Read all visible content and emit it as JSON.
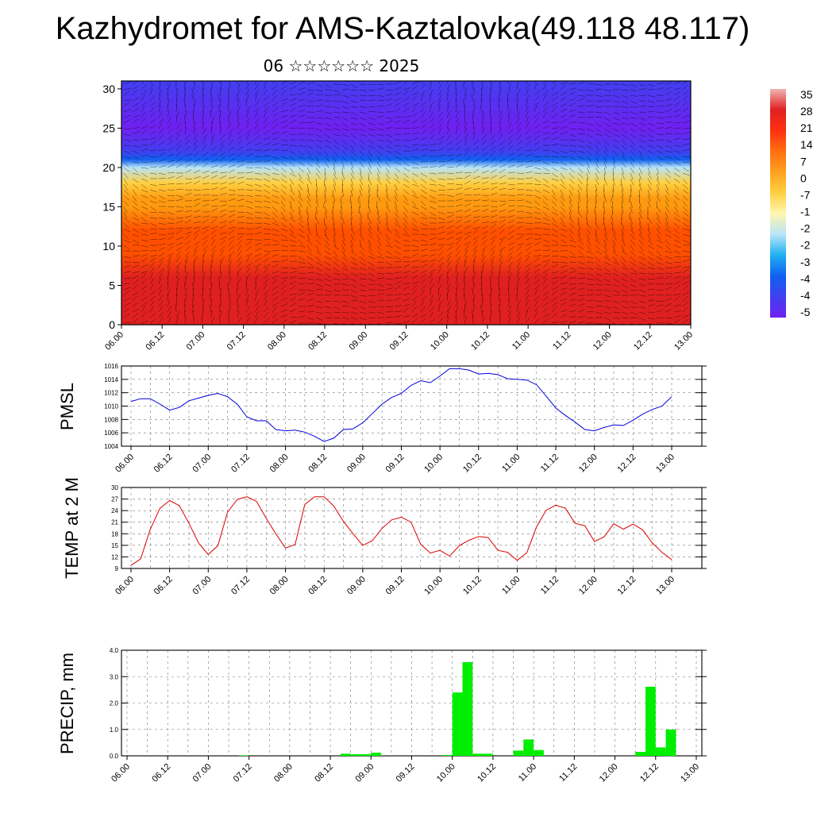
{
  "title": "Kazhydromet for AMS-Kaztalovka(49.118 48.117)",
  "subtitle": "06 ☆☆☆☆☆☆ 2025",
  "time_ticks": [
    "06.00",
    "06.12",
    "07.00",
    "07.12",
    "08.00",
    "08.12",
    "09.00",
    "09.12",
    "10.00",
    "10.12",
    "11.00",
    "11.12",
    "12.00",
    "12.12",
    "13.00"
  ],
  "chart_data": [
    {
      "type": "heatmap",
      "title": "",
      "x_ticks": [
        "06.00",
        "06.12",
        "07.00",
        "07.12",
        "08.00",
        "08.12",
        "09.00",
        "09.12",
        "10.00",
        "10.12",
        "11.00",
        "11.12",
        "12.00",
        "12.12",
        "13.00"
      ],
      "y_ticks": [
        0,
        5,
        10,
        15,
        20,
        25,
        30
      ],
      "ylim": [
        0,
        31
      ],
      "colorbar_labels": [
        "35",
        "28",
        "21",
        "14",
        "7",
        "0",
        "-7",
        "-1",
        "-2",
        "-2",
        "-3",
        "-4",
        "-4",
        "-5"
      ],
      "colors": [
        "#f0b4b4",
        "#e02020",
        "#ff5000",
        "#ff9a10",
        "#ffd040",
        "#fff6b0",
        "#b8e4f8",
        "#20b0f0",
        "#1060f0",
        "#4040f0",
        "#7020f0"
      ],
      "profile": [
        [
          0,
          30
        ],
        [
          3,
          27
        ],
        [
          6,
          24
        ],
        [
          9,
          19
        ],
        [
          12,
          14
        ],
        [
          15,
          8
        ],
        [
          16,
          3
        ],
        [
          18,
          -4
        ],
        [
          20,
          -22
        ],
        [
          21,
          -45
        ],
        [
          22,
          -55
        ],
        [
          25,
          -60
        ],
        [
          31,
          -52
        ]
      ],
      "vector_field": "wind barbs (black)"
    },
    {
      "type": "line",
      "ylabel": "PMSL",
      "x_ticks": [
        "06.00",
        "06.12",
        "07.00",
        "07.12",
        "08.00",
        "08.12",
        "09.00",
        "09.12",
        "10.00",
        "10.12",
        "11.00",
        "11.12",
        "12.00",
        "12.12",
        "13.00"
      ],
      "y_ticks": [
        1004,
        1006,
        1008,
        1010,
        1012,
        1014,
        1016
      ],
      "ylim": [
        1004,
        1016
      ],
      "color": "#0000dd",
      "series": [
        {
          "values": [
            1010.7,
            1011.1,
            1011.1,
            1010.3,
            1009.4,
            1009.8,
            1010.8,
            1011.2,
            1011.6,
            1011.9,
            1011.4,
            1010.3,
            1008.4,
            1007.8,
            1007.8,
            1006.5,
            1006.3,
            1006.4,
            1006.1,
            1005.5,
            1004.7,
            1005.2,
            1006.5,
            1006.6,
            1007.5,
            1008.9,
            1010.3,
            1011.3,
            1011.9,
            1013.1,
            1013.8,
            1013.5,
            1014.5,
            1015.6,
            1015.6,
            1015.4,
            1014.8,
            1014.9,
            1014.7,
            1014.1,
            1014.0,
            1013.9,
            1013.2,
            1011.5,
            1009.7,
            1008.6,
            1007.6,
            1006.5,
            1006.3,
            1006.8,
            1007.2,
            1007.1,
            1007.9,
            1008.8,
            1009.5,
            1010.0,
            1011.4
          ]
        }
      ]
    },
    {
      "type": "line",
      "ylabel": "TEMP at 2 M",
      "x_ticks": [
        "06.00",
        "06.12",
        "07.00",
        "07.12",
        "08.00",
        "08.12",
        "09.00",
        "09.12",
        "10.00",
        "10.12",
        "11.00",
        "11.12",
        "12.00",
        "12.12",
        "13.00"
      ],
      "y_ticks": [
        9,
        12,
        15,
        18,
        21,
        24,
        27,
        30
      ],
      "ylim": [
        9,
        30
      ],
      "color": "#dd0000",
      "series": [
        {
          "values": [
            9.8,
            11.5,
            19.2,
            24.6,
            26.6,
            25.3,
            20.7,
            15.6,
            12.6,
            14.9,
            23.6,
            26.9,
            27.6,
            26.4,
            22.0,
            18.0,
            14.3,
            15.2,
            25.6,
            27.6,
            27.6,
            25.2,
            21.2,
            18.0,
            15.0,
            16.2,
            19.4,
            21.6,
            22.3,
            21.0,
            15.3,
            13.0,
            13.7,
            12.2,
            14.9,
            16.3,
            17.3,
            17.0,
            13.7,
            13.2,
            11.1,
            13.1,
            19.8,
            24.1,
            25.4,
            24.6,
            20.7,
            20.1,
            16.0,
            17.2,
            20.6,
            19.2,
            20.5,
            19.0,
            15.6,
            13.2,
            11.3
          ]
        }
      ]
    },
    {
      "type": "bar",
      "ylabel": "PRECIP, mm",
      "x_ticks": [
        "06.00",
        "06.12",
        "07.00",
        "07.12",
        "08.00",
        "08.12",
        "09.00",
        "09.12",
        "10.00",
        "10.12",
        "11.00",
        "11.12",
        "12.00",
        "12.12",
        "13.00"
      ],
      "y_ticks": [
        "0.0",
        "1.0",
        "2.0",
        "3.0",
        "4.0"
      ],
      "ylim": [
        0,
        4
      ],
      "color": "#00ee00",
      "bars": [
        {
          "t": "07.09",
          "v": 0.02
        },
        {
          "t": "08.15",
          "v": 0.08
        },
        {
          "t": "08.18",
          "v": 0.06
        },
        {
          "t": "08.21",
          "v": 0.06
        },
        {
          "t": "09.00",
          "v": 0.12
        },
        {
          "t": "09.21",
          "v": 0.03
        },
        {
          "t": "10.00",
          "v": 2.4
        },
        {
          "t": "10.03",
          "v": 3.55
        },
        {
          "t": "10.06",
          "v": 0.08
        },
        {
          "t": "10.09",
          "v": 0.08
        },
        {
          "t": "10.18",
          "v": 0.2
        },
        {
          "t": "10.21",
          "v": 0.62
        },
        {
          "t": "11.00",
          "v": 0.22
        },
        {
          "t": "12.06",
          "v": 0.15
        },
        {
          "t": "12.09",
          "v": 2.62
        },
        {
          "t": "12.12",
          "v": 0.32
        },
        {
          "t": "12.15",
          "v": 1.0
        }
      ]
    }
  ]
}
